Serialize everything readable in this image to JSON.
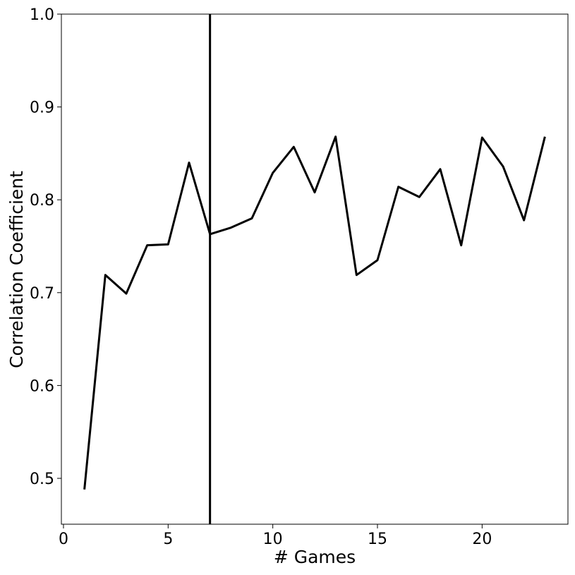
{
  "chart_data": {
    "type": "line",
    "x_label": "# Games",
    "y_label": "Correlation Coefficient",
    "x": [
      1,
      2,
      3,
      4,
      5,
      6,
      7,
      8,
      9,
      10,
      11,
      12,
      13,
      14,
      15,
      16,
      17,
      18,
      19,
      20,
      21,
      22,
      23
    ],
    "series": [
      {
        "color": "#000000",
        "values": [
          0.488,
          0.719,
          0.699,
          0.751,
          0.752,
          0.84,
          0.763,
          0.77,
          0.78,
          0.829,
          0.857,
          0.808,
          0.868,
          0.719,
          0.735,
          0.814,
          0.803,
          0.833,
          0.751,
          0.867,
          0.836,
          0.778,
          0.868
        ]
      }
    ],
    "vlines": [
      7
    ],
    "xlim": [
      -0.1,
      24.1
    ],
    "xticks": [
      0,
      5,
      10,
      15,
      20
    ],
    "ylim": [
      0.4506,
      1.0
    ],
    "yticks": [
      0.5,
      0.6,
      0.7,
      0.8,
      0.9,
      {
        "value": 1,
        "label": "1.0"
      }
    ],
    "grid": false
  }
}
